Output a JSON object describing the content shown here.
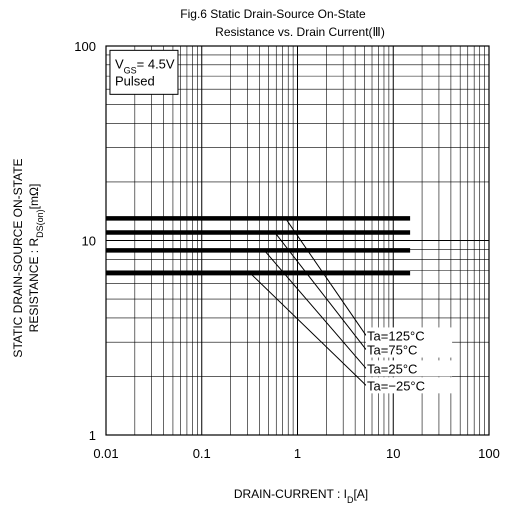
{
  "chart_data": {
    "type": "line",
    "title_line1": "Fig.6  Static Drain-Source On-State",
    "title_line2": "Resistance vs. Drain Current(Ⅲ)",
    "xlabel": "DRAIN-CURRENT : I_D[A]",
    "ylabel_line1": "STATIC DRAIN-SOURCE ON-STATE",
    "ylabel_line2": "RESISTANCE : R_DS(on)[mΩ]",
    "x_scale": "log",
    "y_scale": "log",
    "xlim": [
      0.01,
      100
    ],
    "ylim": [
      1,
      100
    ],
    "x_ticks": [
      "0.01",
      "0.1",
      "1",
      "10",
      "100"
    ],
    "y_ticks": [
      "1",
      "10",
      "100"
    ],
    "grid": true,
    "annotation_box": {
      "line1": "V_GS= 4.5V",
      "line2": "Pulsed"
    },
    "series": [
      {
        "name": "Ta=125°C",
        "points": [
          [
            0.01,
            13.0
          ],
          [
            0.75,
            13.0
          ],
          [
            15,
            13.0
          ]
        ]
      },
      {
        "name": "Ta=75°C",
        "points": [
          [
            0.01,
            11.0
          ],
          [
            0.58,
            11.0
          ],
          [
            15,
            11.0
          ]
        ]
      },
      {
        "name": "Ta=25°C",
        "points": [
          [
            0.01,
            8.9
          ],
          [
            0.45,
            8.9
          ],
          [
            15,
            8.9
          ]
        ]
      },
      {
        "name": "Ta=−25°C",
        "points": [
          [
            0.01,
            6.8
          ],
          [
            0.32,
            6.8
          ],
          [
            15,
            6.8
          ]
        ]
      }
    ],
    "rising_lines": [
      {
        "name": "Ta=125°C",
        "points": [
          [
            0.75,
            13.0
          ],
          [
            5.2,
            3.25
          ]
        ]
      },
      {
        "name": "Ta=75°C",
        "points": [
          [
            0.58,
            11.0
          ],
          [
            5.2,
            2.75
          ]
        ]
      },
      {
        "name": "Ta=25°C",
        "points": [
          [
            0.45,
            8.9
          ],
          [
            5.2,
            2.2
          ]
        ]
      },
      {
        "name": "Ta=−25°C",
        "points": [
          [
            0.32,
            6.8
          ],
          [
            5.2,
            1.8
          ]
        ]
      }
    ],
    "legend_labels": [
      {
        "text": "Ta=125°C",
        "y": 3.25
      },
      {
        "text": "Ta=75°C",
        "y": 2.75
      },
      {
        "text": "Ta=25°C",
        "y": 2.2
      },
      {
        "text": "Ta=−25°C",
        "y": 1.8
      }
    ],
    "colors": {
      "line": "#000000",
      "grid": "#000000",
      "background": "#ffffff"
    }
  }
}
